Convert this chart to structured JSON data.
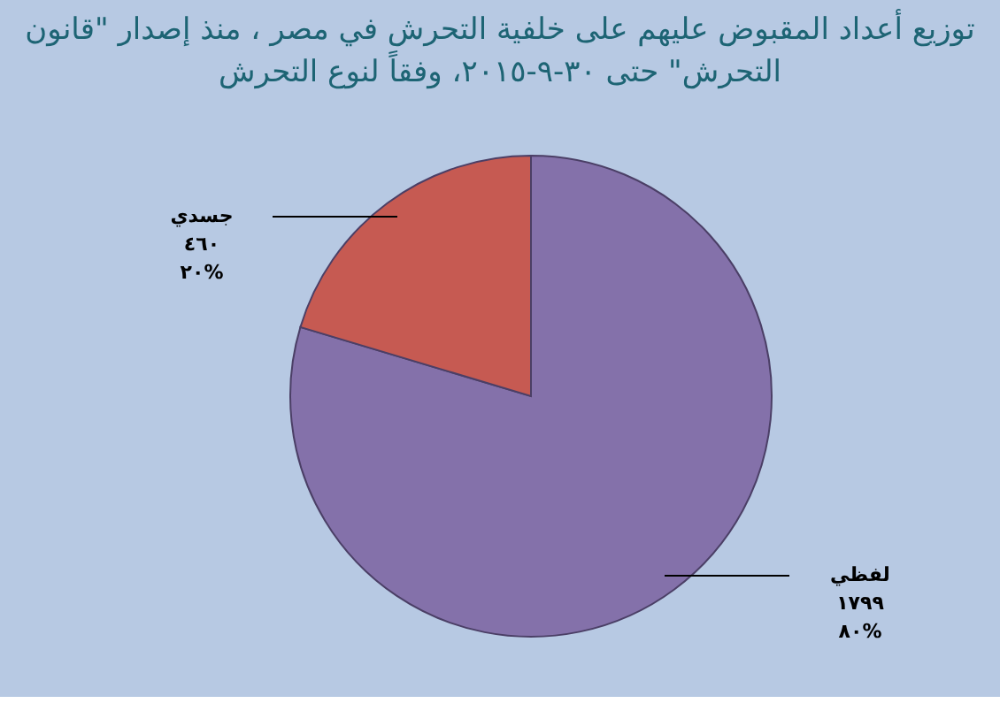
{
  "chart_data": {
    "type": "pie",
    "title": "توزيع أعداد المقبوض عليهم على خلفية التحرش في مصر ، منذ إصدار \"قانون التحرش\" حتى ٣٠-٩-٢٠١٥، وفقاً لنوع التحرش",
    "categories": [
      "لفظي",
      "جسدي"
    ],
    "values": [
      1799,
      460
    ],
    "colors": [
      "#8471aa",
      "#c65a52"
    ],
    "value_labels": [
      "١٧٩٩\n٨٠%",
      "٤٦٠\n٢٠%"
    ]
  }
}
